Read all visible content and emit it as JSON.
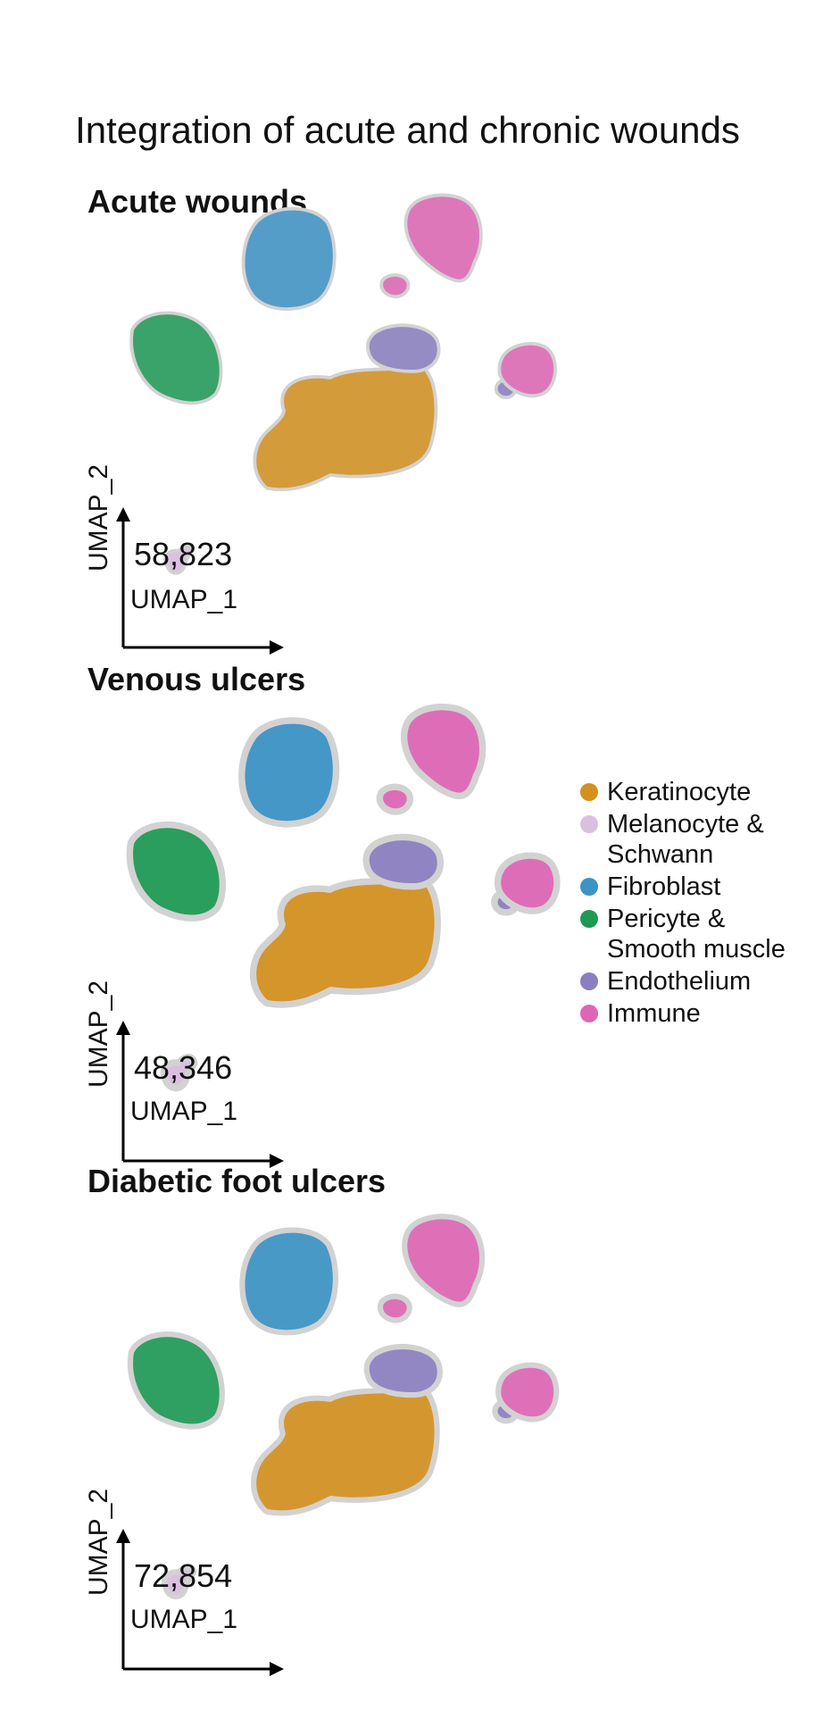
{
  "title": "Integration of acute and chronic wounds",
  "chart_data": {
    "type": "scatter",
    "xlabel": "UMAP_1",
    "ylabel": "UMAP_2",
    "legend_position": "right",
    "cell_types": [
      {
        "name": "Keratinocyte",
        "color": "#d4911f"
      },
      {
        "name": "Melanocyte &\nSchwann",
        "color": "#d9bfe0"
      },
      {
        "name": "Fibroblast",
        "color": "#3b93c6"
      },
      {
        "name": "Pericyte &\nSmooth muscle",
        "color": "#1e9a55"
      },
      {
        "name": "Endothelium",
        "color": "#8b7fc1"
      },
      {
        "name": "Immune",
        "color": "#df66b5"
      }
    ],
    "background_color": "#d2d2d2",
    "panels": [
      {
        "title": "Acute wounds",
        "cell_count": "58,823",
        "background_spread": 0.3
      },
      {
        "title": "Venous ulcers",
        "cell_count": "48,346",
        "background_spread": 0.9
      },
      {
        "title": "Diabetic foot ulcers",
        "cell_count": "72,854",
        "background_spread": 0.7
      }
    ]
  }
}
